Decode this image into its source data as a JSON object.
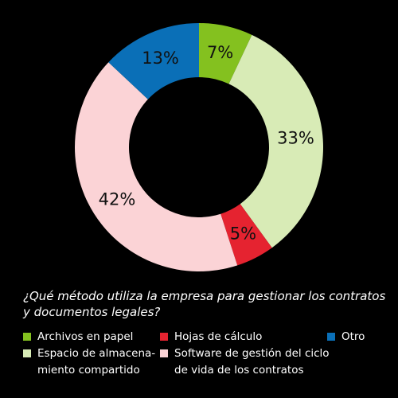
{
  "chart_data": {
    "type": "pie",
    "donut": true,
    "title": "¿Qué método utiliza la empresa para gestionar los contratos y documentos legales?",
    "title_lines": [
      "¿Qué método utiliza la empresa para gestionar los contratos",
      "y documentos legales?"
    ],
    "slices": [
      {
        "name": "Archivos en papel",
        "value": 7,
        "label": "7%",
        "color": "#84c11f"
      },
      {
        "name": "Espacio de almacenamiento compartido",
        "value": 33,
        "label": "33%",
        "color": "#d8ebb6"
      },
      {
        "name": "Hojas de cálculo",
        "value": 5,
        "label": "5%",
        "color": "#e52330"
      },
      {
        "name": "Software de gestión del ciclo de vida de los contratos",
        "value": 42,
        "label": "42%",
        "color": "#fbd3d6"
      },
      {
        "name": "Otro",
        "value": 13,
        "label": "13%",
        "color": "#0a6fb7"
      }
    ],
    "legend": {
      "placement": "bottom",
      "entries": [
        {
          "lines": [
            "Archivos en papel"
          ],
          "color": "#84c11f"
        },
        {
          "lines": [
            "Hojas de cálculo"
          ],
          "color": "#e52330"
        },
        {
          "lines": [
            "Otro"
          ],
          "color": "#0a6fb7"
        },
        {
          "lines": [
            "Espacio de almacena-",
            "miento compartido"
          ],
          "color": "#d8ebb6"
        },
        {
          "lines": [
            "Software de gestión del ciclo",
            "de vida de los contratos"
          ],
          "color": "#fbd3d6"
        }
      ]
    }
  }
}
